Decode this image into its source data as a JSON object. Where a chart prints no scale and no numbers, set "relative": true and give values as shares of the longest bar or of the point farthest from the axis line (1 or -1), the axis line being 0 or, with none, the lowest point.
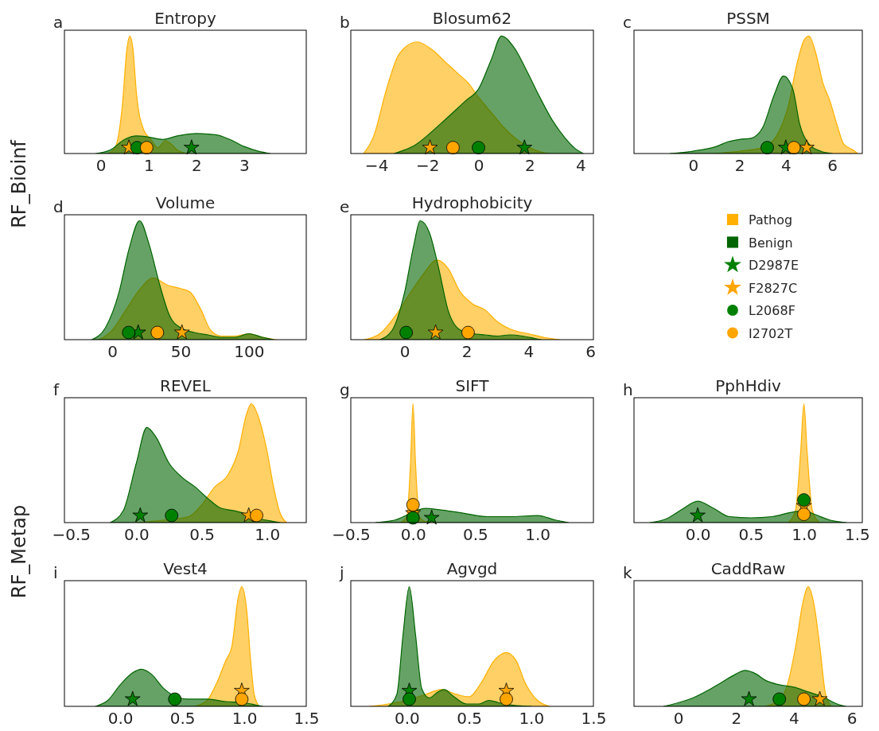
{
  "chart_data": [
    {
      "type": "area",
      "title": "Entropy",
      "ylabel": "RF_Bioinf",
      "annotations": [
        "a"
      ],
      "relative": true,
      "tick_labels": "x",
      "xlim": [
        -0.76,
        4.3
      ],
      "xticks": [
        0,
        1,
        2,
        3
      ],
      "series": [
        {
          "color": "#ffb000",
          "x": [
            0.15,
            0.3,
            0.45,
            0.55,
            0.61,
            0.67,
            0.75,
            0.9,
            1.05,
            1.2,
            1.35,
            1.45,
            1.6,
            1.8
          ],
          "values": [
            0,
            0.05,
            0.4,
            0.9,
            1,
            0.9,
            0.5,
            0.2,
            0.12,
            0.05,
            0.11,
            0.09,
            0.03,
            0
          ]
        },
        {
          "color": "#006400",
          "x": [
            -0.1,
            0.2,
            0.5,
            0.75,
            1.0,
            1.3,
            1.6,
            2.0,
            2.4,
            2.7,
            3.0,
            3.3,
            3.55
          ],
          "values": [
            0,
            0.03,
            0.12,
            0.15,
            0.14,
            0.12,
            0.15,
            0.17,
            0.16,
            0.12,
            0.06,
            0.02,
            0
          ]
        },
        {
          "type": "scatter",
          "marker": "star",
          "color": "#008000",
          "x": [
            1.9
          ],
          "values": [
            0.05
          ]
        },
        {
          "type": "scatter",
          "marker": "star",
          "color": "#ffa500",
          "x": [
            0.59
          ],
          "values": [
            0.05
          ]
        },
        {
          "type": "scatter",
          "marker": "circle",
          "color": "#008000",
          "x": [
            0.76
          ],
          "values": [
            0.05
          ]
        },
        {
          "type": "scatter",
          "marker": "circle",
          "color": "#ffa500",
          "x": [
            0.96
          ],
          "values": [
            0.05
          ]
        }
      ]
    },
    {
      "type": "area",
      "title": "Blosum62",
      "annotations": [
        "b"
      ],
      "relative": true,
      "tick_labels": "x",
      "xlim": [
        -5.0,
        4.5
      ],
      "xticks": [
        {
          "value": -4,
          "label": "−4"
        },
        {
          "value": -2,
          "label": "−2"
        },
        0,
        2,
        4
      ],
      "series": [
        {
          "color": "#ffb000",
          "x": [
            -4.5,
            -4.1,
            -3.6,
            -3.1,
            -2.4,
            -1.8,
            -1.3,
            -0.8,
            -0.4,
            0,
            0.5,
            1.0,
            1.5,
            2.0,
            2.5,
            2.8
          ],
          "values": [
            0,
            0.15,
            0.55,
            0.85,
            0.95,
            0.88,
            0.78,
            0.68,
            0.6,
            0.48,
            0.35,
            0.22,
            0.12,
            0.05,
            0.01,
            0
          ]
        },
        {
          "color": "#006400",
          "x": [
            -3.3,
            -2.5,
            -1.5,
            -0.5,
            0,
            0.5,
            0.9,
            1.4,
            1.9,
            2.4,
            2.9,
            3.4,
            3.8,
            4.1
          ],
          "values": [
            0,
            0.07,
            0.25,
            0.45,
            0.55,
            0.8,
            1,
            0.9,
            0.7,
            0.48,
            0.28,
            0.13,
            0.04,
            0
          ]
        },
        {
          "type": "scatter",
          "marker": "star",
          "color": "#008000",
          "x": [
            1.8
          ],
          "values": [
            0.05
          ]
        },
        {
          "type": "scatter",
          "marker": "star",
          "color": "#ffa500",
          "x": [
            -1.9
          ],
          "values": [
            0.05
          ]
        },
        {
          "type": "scatter",
          "marker": "circle",
          "color": "#008000",
          "x": [
            0
          ],
          "values": [
            0.05
          ]
        },
        {
          "type": "scatter",
          "marker": "circle",
          "color": "#ffa500",
          "x": [
            -1.0
          ],
          "values": [
            0.05
          ]
        }
      ]
    },
    {
      "type": "area",
      "title": "PSSM",
      "annotations": [
        "c"
      ],
      "relative": true,
      "tick_labels": "x",
      "xlim": [
        -2.55,
        7.3
      ],
      "xticks": [
        0,
        2,
        4,
        6
      ],
      "series": [
        {
          "color": "#ffb000",
          "x": [
            1.0,
            2.0,
            3.0,
            3.6,
            4.1,
            4.5,
            4.8,
            5.0,
            5.3,
            5.6,
            5.9,
            6.2,
            6.5,
            6.9,
            7.1
          ],
          "values": [
            0,
            0.02,
            0.05,
            0.15,
            0.4,
            0.78,
            0.97,
            1,
            0.85,
            0.6,
            0.45,
            0.25,
            0.08,
            0.03,
            0
          ]
        },
        {
          "color": "#006400",
          "x": [
            -1.0,
            0,
            1.0,
            1.5,
            2.0,
            2.5,
            3.0,
            3.5,
            3.9,
            4.3,
            4.6,
            5.0,
            5.5,
            6.0
          ],
          "values": [
            0,
            0.02,
            0.06,
            0.1,
            0.12,
            0.13,
            0.22,
            0.5,
            0.66,
            0.55,
            0.25,
            0.08,
            0.02,
            0
          ]
        },
        {
          "type": "scatter",
          "marker": "star",
          "color": "#008000",
          "x": [
            4.0
          ],
          "values": [
            0.05
          ]
        },
        {
          "type": "scatter",
          "marker": "star",
          "color": "#ffa500",
          "x": [
            4.9
          ],
          "values": [
            0.05
          ]
        },
        {
          "type": "scatter",
          "marker": "circle",
          "color": "#008000",
          "x": [
            3.2
          ],
          "values": [
            0.05
          ]
        },
        {
          "type": "scatter",
          "marker": "circle",
          "color": "#ffa500",
          "x": [
            4.35
          ],
          "values": [
            0.05
          ]
        }
      ]
    },
    {
      "type": "area",
      "title": "Volume",
      "annotations": [
        "d"
      ],
      "relative": true,
      "tick_labels": "x",
      "xlim": [
        -35,
        142
      ],
      "xticks": [
        0,
        50,
        100
      ],
      "series": [
        {
          "color": "#ffb000",
          "x": [
            -10,
            0,
            10,
            20,
            30,
            40,
            50,
            57,
            65,
            72,
            80,
            90,
            100,
            110,
            120
          ],
          "values": [
            0,
            0.08,
            0.25,
            0.42,
            0.52,
            0.46,
            0.43,
            0.4,
            0.25,
            0.08,
            0.03,
            0.03,
            0.05,
            0.02,
            0
          ]
        },
        {
          "color": "#006400",
          "x": [
            -15,
            -5,
            5,
            12,
            20,
            27,
            35,
            42,
            50,
            60,
            70,
            80,
            90,
            100,
            110,
            118
          ],
          "values": [
            0,
            0.1,
            0.4,
            0.75,
            1,
            0.8,
            0.45,
            0.2,
            0.1,
            0.06,
            0.04,
            0.02,
            0.02,
            0.05,
            0.02,
            0
          ]
        },
        {
          "type": "scatter",
          "marker": "star",
          "color": "#008000",
          "x": [
            19
          ],
          "values": [
            0.06
          ]
        },
        {
          "type": "scatter",
          "marker": "star",
          "color": "#ffa500",
          "x": [
            51
          ],
          "values": [
            0.06
          ]
        },
        {
          "type": "scatter",
          "marker": "circle",
          "color": "#008000",
          "x": [
            12
          ],
          "values": [
            0.06
          ]
        },
        {
          "type": "scatter",
          "marker": "circle",
          "color": "#ffa500",
          "x": [
            33
          ],
          "values": [
            0.06
          ]
        }
      ]
    },
    {
      "type": "area",
      "title": "Hydrophobicity",
      "annotations": [
        "e"
      ],
      "relative": true,
      "tick_labels": "x",
      "legend": "right",
      "xlim": [
        -1.74,
        6.1
      ],
      "xticks": [
        0,
        2,
        4,
        6
      ],
      "series": [
        {
          "name": "Pathog",
          "color": "#ffb000",
          "x": [
            -1.3,
            -0.8,
            -0.3,
            0.2,
            0.6,
            1.05,
            1.4,
            1.8,
            2.2,
            2.6,
            3.0,
            3.5,
            4.0,
            4.5,
            5.0
          ],
          "values": [
            0,
            0.05,
            0.2,
            0.4,
            0.55,
            0.67,
            0.6,
            0.4,
            0.3,
            0.25,
            0.15,
            0.08,
            0.05,
            0.02,
            0
          ]
        },
        {
          "name": "Benign",
          "color": "#006400",
          "x": [
            -0.8,
            -0.4,
            0,
            0.3,
            0.5,
            0.8,
            1.1,
            1.4,
            1.8,
            2.2,
            2.6,
            3.0,
            3.4,
            3.8,
            4.2,
            4.4
          ],
          "values": [
            0,
            0.08,
            0.4,
            0.8,
            1,
            0.9,
            0.6,
            0.25,
            0.08,
            0.05,
            0.04,
            0.03,
            0.04,
            0.03,
            0.01,
            0
          ]
        },
        {
          "name": "D2987E",
          "type": "scatter",
          "marker": "star",
          "color": "#008000"
        },
        {
          "name": "F2827C",
          "type": "scatter",
          "marker": "star",
          "color": "#ffa500",
          "x": [
            1.0
          ],
          "values": [
            0.06
          ]
        },
        {
          "name": "L2068F",
          "type": "scatter",
          "marker": "circle",
          "color": "#008000",
          "x": [
            0.05
          ],
          "values": [
            0.06
          ]
        },
        {
          "name": "I2702T",
          "type": "scatter",
          "marker": "circle",
          "color": "#ffa500",
          "x": [
            2.05
          ],
          "values": [
            0.06
          ]
        }
      ]
    },
    {
      "type": "area",
      "title": "REVEL",
      "ylabel": "RF_Metap",
      "annotations": [
        "f"
      ],
      "relative": true,
      "tick_labels": "x",
      "xlim": [
        -0.55,
        1.3
      ],
      "xticks": [
        {
          "value": -0.5,
          "label": "−0.5"
        },
        {
          "value": 0,
          "label": "0.0"
        },
        0.5,
        {
          "value": 1,
          "label": "1.0"
        }
      ],
      "series": [
        {
          "color": "#ffb000",
          "x": [
            0,
            0.2,
            0.4,
            0.5,
            0.6,
            0.7,
            0.78,
            0.84,
            0.88,
            0.93,
            1.0,
            1.05,
            1.1,
            1.15
          ],
          "values": [
            0,
            0.02,
            0.05,
            0.15,
            0.3,
            0.4,
            0.6,
            0.9,
            1,
            0.9,
            0.6,
            0.3,
            0.08,
            0
          ]
        },
        {
          "color": "#006400",
          "x": [
            -0.2,
            -0.1,
            0,
            0.08,
            0.15,
            0.25,
            0.35,
            0.45,
            0.55,
            0.65,
            0.75,
            0.85,
            0.95,
            1.05,
            1.1
          ],
          "values": [
            0,
            0.1,
            0.5,
            0.8,
            0.72,
            0.5,
            0.38,
            0.3,
            0.2,
            0.12,
            0.1,
            0.07,
            0.03,
            0.01,
            0
          ]
        },
        {
          "type": "scatter",
          "marker": "star",
          "color": "#008000",
          "x": [
            0.03
          ],
          "values": [
            0.06
          ]
        },
        {
          "type": "scatter",
          "marker": "star",
          "color": "#ffa500",
          "x": [
            0.86
          ],
          "values": [
            0.06
          ]
        },
        {
          "type": "scatter",
          "marker": "circle",
          "color": "#008000",
          "x": [
            0.27
          ],
          "values": [
            0.06
          ]
        },
        {
          "type": "scatter",
          "marker": "circle",
          "color": "#ffa500",
          "x": [
            0.92
          ],
          "values": [
            0.06
          ]
        }
      ]
    },
    {
      "type": "area",
      "title": "SIFT",
      "annotations": [
        "g"
      ],
      "relative": true,
      "tick_labels": "x",
      "xlim": [
        -0.5,
        1.45
      ],
      "xticks": [
        {
          "value": -0.5,
          "label": "−0.5"
        },
        {
          "value": 0,
          "label": "0.0"
        },
        0.5,
        {
          "value": 1,
          "label": "1.0"
        }
      ],
      "series": [
        {
          "color": "#ffb000",
          "x": [
            -0.1,
            -0.05,
            -0.02,
            0,
            0.02,
            0.05,
            0.1,
            0.2
          ],
          "values": [
            0,
            0.05,
            0.5,
            1,
            0.5,
            0.05,
            0.01,
            0
          ]
        },
        {
          "color": "#006400",
          "x": [
            -0.3,
            -0.15,
            0.1,
            0.2,
            0.4,
            0.6,
            0.8,
            1.0,
            1.15,
            1.25
          ],
          "values": [
            0,
            0.02,
            0.12,
            0.11,
            0.08,
            0.05,
            0.05,
            0.06,
            0.02,
            0
          ]
        },
        {
          "type": "scatter",
          "marker": "star",
          "color": "#008000",
          "x": [
            0.15
          ],
          "values": [
            0.04
          ]
        },
        {
          "type": "scatter",
          "marker": "star",
          "color": "#ffa500",
          "x": [
            0
          ],
          "values": [
            0.08
          ]
        },
        {
          "type": "scatter",
          "marker": "circle",
          "color": "#008000",
          "x": [
            0
          ],
          "values": [
            0.04
          ]
        },
        {
          "type": "scatter",
          "marker": "circle",
          "color": "#ffa500",
          "x": [
            0
          ],
          "values": [
            0.15
          ]
        }
      ]
    },
    {
      "type": "area",
      "title": "PphHdiv",
      "annotations": [
        "h"
      ],
      "relative": true,
      "tick_labels": "x",
      "xlim": [
        -0.6,
        1.55
      ],
      "xticks": [
        {
          "value": 0,
          "label": "0.0"
        },
        0.5,
        {
          "value": 1,
          "label": "1.0"
        },
        1.5
      ],
      "series": [
        {
          "color": "#ffb000",
          "x": [
            0.85,
            0.92,
            0.97,
            1.0,
            1.03,
            1.08,
            1.15
          ],
          "values": [
            0,
            0.1,
            0.6,
            1,
            0.6,
            0.1,
            0
          ]
        },
        {
          "color": "#006400",
          "x": [
            -0.45,
            -0.3,
            -0.15,
            0,
            0.15,
            0.3,
            0.5,
            0.7,
            0.9,
            1.0,
            1.1,
            1.25,
            1.4
          ],
          "values": [
            0,
            0.03,
            0.11,
            0.18,
            0.12,
            0.05,
            0.04,
            0.05,
            0.09,
            0.1,
            0.07,
            0.02,
            0
          ]
        },
        {
          "type": "scatter",
          "marker": "star",
          "color": "#008000",
          "x": [
            0
          ],
          "values": [
            0.06
          ]
        },
        {
          "type": "scatter",
          "marker": "star",
          "color": "#ffa500",
          "x": [
            1.0
          ],
          "values": [
            0.14
          ]
        },
        {
          "type": "scatter",
          "marker": "circle",
          "color": "#008000",
          "x": [
            1.0
          ],
          "values": [
            0.19
          ]
        },
        {
          "type": "scatter",
          "marker": "circle",
          "color": "#ffa500",
          "x": [
            1.0
          ],
          "values": [
            0.07
          ]
        }
      ]
    },
    {
      "type": "area",
      "title": "Vest4",
      "annotations": [
        "i"
      ],
      "relative": true,
      "tick_labels": "x",
      "xlim": [
        -0.45,
        1.5
      ],
      "xticks": [
        {
          "value": 0,
          "label": "0.0"
        },
        0.5,
        {
          "value": 1,
          "label": "1.0"
        },
        1.5
      ],
      "series": [
        {
          "color": "#ffb000",
          "x": [
            0.6,
            0.7,
            0.78,
            0.85,
            0.9,
            0.95,
            0.98,
            1.02,
            1.05,
            1.08,
            1.12
          ],
          "values": [
            0,
            0.05,
            0.2,
            0.38,
            0.5,
            0.9,
            1,
            0.8,
            0.4,
            0.1,
            0
          ]
        },
        {
          "color": "#006400",
          "x": [
            -0.2,
            -0.1,
            0,
            0.1,
            0.17,
            0.25,
            0.35,
            0.45,
            0.55,
            0.7,
            0.85,
            1.0,
            1.1,
            1.15
          ],
          "values": [
            0,
            0.05,
            0.18,
            0.28,
            0.31,
            0.27,
            0.15,
            0.08,
            0.06,
            0.06,
            0.04,
            0.03,
            0.01,
            0
          ]
        },
        {
          "type": "scatter",
          "marker": "star",
          "color": "#008000",
          "x": [
            0.1
          ],
          "values": [
            0.06
          ]
        },
        {
          "type": "scatter",
          "marker": "star",
          "color": "#ffa500",
          "x": [
            0.98
          ],
          "values": [
            0.13
          ]
        },
        {
          "type": "scatter",
          "marker": "circle",
          "color": "#008000",
          "x": [
            0.44
          ],
          "values": [
            0.06
          ]
        },
        {
          "type": "scatter",
          "marker": "circle",
          "color": "#ffa500",
          "x": [
            0.98
          ],
          "values": [
            0.06
          ]
        }
      ]
    },
    {
      "type": "area",
      "title": "Agvgd",
      "annotations": [
        "j"
      ],
      "relative": true,
      "tick_labels": "x",
      "xlim": [
        -0.45,
        1.5
      ],
      "xticks": [
        {
          "value": 0,
          "label": "0.0"
        },
        0.5,
        {
          "value": 1,
          "label": "1.0"
        },
        1.5
      ],
      "series": [
        {
          "color": "#ffb000",
          "x": [
            -0.3,
            -0.15,
            0,
            0.15,
            0.28,
            0.4,
            0.5,
            0.6,
            0.7,
            0.8,
            0.88,
            0.95,
            1.05,
            1.15
          ],
          "values": [
            0,
            0.02,
            0.05,
            0.1,
            0.14,
            0.1,
            0.08,
            0.2,
            0.38,
            0.45,
            0.38,
            0.2,
            0.05,
            0
          ]
        },
        {
          "color": "#006400",
          "x": [
            -0.15,
            -0.08,
            -0.03,
            0.02,
            0.07,
            0.12,
            0.18,
            0.25,
            0.3,
            0.38,
            0.48,
            0.58,
            0.66,
            0.74,
            0.85,
            1.0
          ],
          "values": [
            0,
            0.1,
            0.6,
            1,
            0.6,
            0.15,
            0.07,
            0.12,
            0.14,
            0.08,
            0.02,
            0.02,
            0.05,
            0.03,
            0.01,
            0
          ]
        },
        {
          "type": "scatter",
          "marker": "star",
          "color": "#008000",
          "x": [
            0.02
          ],
          "values": [
            0.13
          ]
        },
        {
          "type": "scatter",
          "marker": "star",
          "color": "#ffa500",
          "x": [
            0.8
          ],
          "values": [
            0.13
          ]
        },
        {
          "type": "scatter",
          "marker": "circle",
          "color": "#008000",
          "x": [
            0.02
          ],
          "values": [
            0.06
          ]
        },
        {
          "type": "scatter",
          "marker": "circle",
          "color": "#ffa500",
          "x": [
            0.8
          ],
          "values": [
            0.06
          ]
        }
      ]
    },
    {
      "type": "area",
      "title": "CaddRaw",
      "annotations": [
        "k"
      ],
      "relative": true,
      "tick_labels": "x",
      "xlim": [
        -1.53,
        6.37
      ],
      "xticks": [
        0,
        2,
        4,
        6
      ],
      "series": [
        {
          "color": "#ffb000",
          "x": [
            3.0,
            3.5,
            3.8,
            4.1,
            4.3,
            4.5,
            4.7,
            4.9,
            5.1,
            5.3
          ],
          "values": [
            0,
            0.05,
            0.2,
            0.55,
            0.85,
            1,
            0.85,
            0.5,
            0.1,
            0
          ]
        },
        {
          "color": "#006400",
          "x": [
            -0.5,
            0,
            0.5,
            1.0,
            1.5,
            2.0,
            2.3,
            2.7,
            3.0,
            3.5,
            4.0,
            4.5,
            5.0,
            5.5,
            5.8
          ],
          "values": [
            0,
            0.03,
            0.07,
            0.13,
            0.2,
            0.27,
            0.3,
            0.27,
            0.22,
            0.18,
            0.16,
            0.12,
            0.08,
            0.02,
            0
          ]
        },
        {
          "type": "scatter",
          "marker": "star",
          "color": "#008000",
          "x": [
            2.45
          ],
          "values": [
            0.06
          ]
        },
        {
          "type": "scatter",
          "marker": "star",
          "color": "#ffa500",
          "x": [
            4.9
          ],
          "values": [
            0.06
          ]
        },
        {
          "type": "scatter",
          "marker": "circle",
          "color": "#008000",
          "x": [
            3.5
          ],
          "values": [
            0.06
          ]
        },
        {
          "type": "scatter",
          "marker": "circle",
          "color": "#ffa500",
          "x": [
            4.35
          ],
          "values": [
            0.06
          ]
        }
      ]
    }
  ]
}
